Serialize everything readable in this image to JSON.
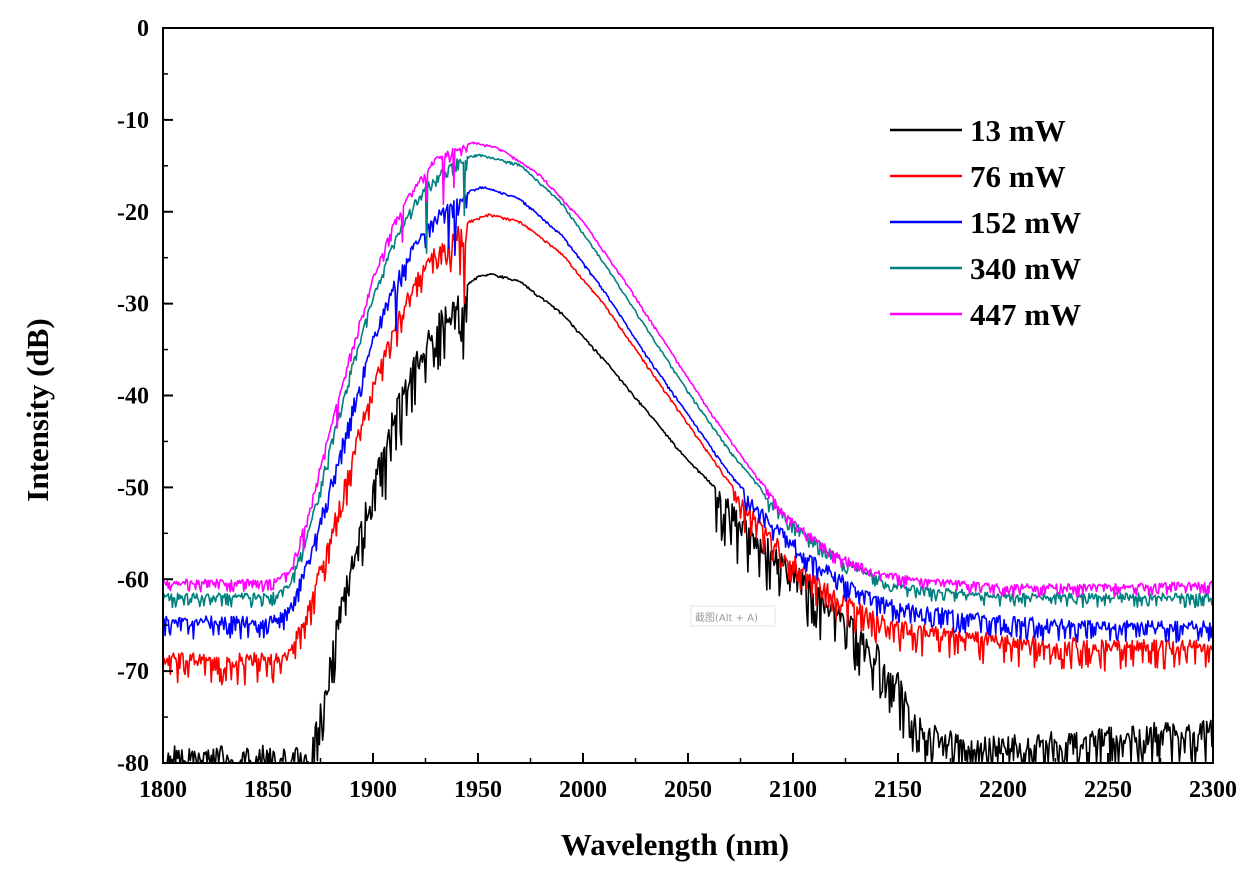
{
  "chart_data": {
    "type": "line",
    "title": "",
    "xlabel": "Wavelength (nm)",
    "ylabel": "Intensity (dB)",
    "xlim": [
      1800,
      2300
    ],
    "ylim": [
      -80,
      0
    ],
    "x_ticks": [
      "1800",
      "1850",
      "1900",
      "1950",
      "2000",
      "2050",
      "2100",
      "2150",
      "2200",
      "2250",
      "2300"
    ],
    "y_ticks": [
      "0",
      "-10",
      "-20",
      "-30",
      "-40",
      "-50",
      "-60",
      "-70",
      "-80"
    ],
    "grid": false,
    "legend_position": "top-right",
    "series": [
      {
        "name": "13 mW",
        "color": "#000000",
        "x": [
          1800,
          1850,
          1870,
          1875,
          1880,
          1890,
          1900,
          1910,
          1920,
          1930,
          1940,
          1950,
          1957,
          1970,
          1990,
          2010,
          2030,
          2050,
          2070,
          2090,
          2110,
          2130,
          2150,
          2160,
          2180,
          2200,
          2250,
          2300
        ],
        "y": [
          -78,
          -78,
          -78,
          -73,
          -67,
          -57,
          -48.5,
          -41,
          -35.5,
          -31.5,
          -28.5,
          -27,
          -26.7,
          -27.5,
          -31,
          -36,
          -41.5,
          -47,
          -51.5,
          -56,
          -60,
          -64,
          -70,
          -75,
          -77,
          -77,
          -76,
          -75
        ]
      },
      {
        "name": "76 mW",
        "color": "#ff0000",
        "x": [
          1800,
          1850,
          1860,
          1870,
          1880,
          1890,
          1900,
          1910,
          1920,
          1930,
          1940,
          1955,
          1970,
          1990,
          2010,
          2030,
          2050,
          2070,
          2090,
          2110,
          2130,
          2150,
          2200,
          2250,
          2300
        ],
        "y": [
          -68,
          -68,
          -67.5,
          -62,
          -54.5,
          -46,
          -38,
          -32,
          -27,
          -23.5,
          -21.5,
          -20.2,
          -21,
          -24.5,
          -30,
          -36.5,
          -43,
          -49.5,
          -55,
          -59.5,
          -62.5,
          -64.5,
          -66,
          -66.5,
          -66.5
        ]
      },
      {
        "name": "152 mW",
        "color": "#0000ff",
        "x": [
          1800,
          1850,
          1860,
          1870,
          1880,
          1890,
          1900,
          1910,
          1920,
          1930,
          1940,
          1952,
          1970,
          1990,
          2010,
          2030,
          2050,
          2070,
          2090,
          2110,
          2130,
          2150,
          2200,
          2250,
          2300
        ],
        "y": [
          -64,
          -64,
          -63,
          -57,
          -49,
          -41,
          -33.5,
          -27.5,
          -23,
          -20,
          -18.2,
          -17.2,
          -18.5,
          -22.5,
          -28.5,
          -35.5,
          -42,
          -48.5,
          -53.5,
          -57.5,
          -60.5,
          -62.5,
          -64,
          -64.5,
          -64.5
        ]
      },
      {
        "name": "340 mW",
        "color": "#00807f",
        "x": [
          1800,
          1850,
          1860,
          1870,
          1880,
          1890,
          1900,
          1910,
          1920,
          1930,
          1940,
          1950,
          1970,
          1990,
          2010,
          2030,
          2050,
          2070,
          2090,
          2110,
          2130,
          2150,
          2200,
          2250,
          2300
        ],
        "y": [
          -61.5,
          -61.5,
          -60.5,
          -54,
          -45,
          -36.5,
          -29,
          -23,
          -18.5,
          -15.8,
          -14.2,
          -13.7,
          -14.8,
          -19,
          -25.5,
          -32.5,
          -39.5,
          -46,
          -51.5,
          -55.5,
          -58.5,
          -60.5,
          -61.5,
          -61.5,
          -61.5
        ]
      },
      {
        "name": "447 mW",
        "color": "#ff00ff",
        "x": [
          1800,
          1850,
          1860,
          1870,
          1880,
          1890,
          1900,
          1910,
          1920,
          1930,
          1940,
          1948,
          1960,
          1980,
          2000,
          2020,
          2040,
          2060,
          2080,
          2100,
          2120,
          2140,
          2160,
          2200,
          2250,
          2300
        ],
        "y": [
          -60,
          -60,
          -59,
          -52,
          -43,
          -34.5,
          -27,
          -21,
          -16.8,
          -14,
          -12.8,
          -12.4,
          -13,
          -16,
          -21,
          -27.5,
          -34.5,
          -41.5,
          -48,
          -53.5,
          -57,
          -59,
          -59.8,
          -60.5,
          -60.5,
          -60.2
        ]
      }
    ]
  },
  "overlay": {
    "tooltip_text": "截图(Alt + A)"
  }
}
